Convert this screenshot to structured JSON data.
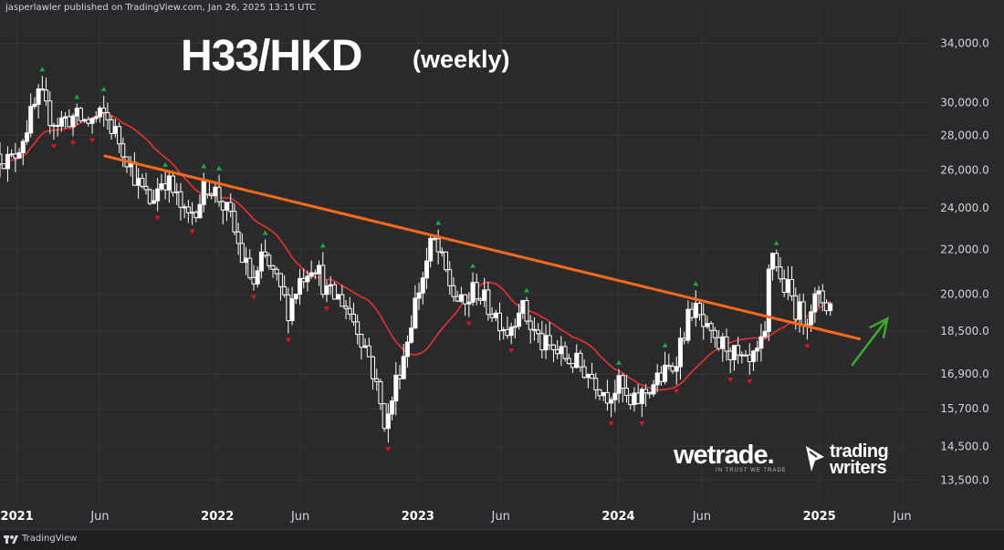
{
  "header": {
    "publisher_text": "jasperlawler published on TradingView.com, Jan 26, 2025 13:15 UTC"
  },
  "title": {
    "main": "H33/HKD",
    "sub": "(weekly)"
  },
  "footer": {
    "brand": "TradingView"
  },
  "watermarks": {
    "wetrade": "wetrade.",
    "wetrade_tagline": "IN TRUST WE TRADE",
    "trading_writers_1": "trading",
    "trading_writers_2": "writers"
  },
  "colors": {
    "background": "#2a2a2c",
    "grid": "#363638",
    "up_candle": "#ffffff",
    "down_candle": "#ffffff",
    "ma": "#e8312c",
    "trendline": "#ff6a1a",
    "up_marker": "#1fa83d",
    "down_marker": "#e0141e",
    "arrow": "#3fa82f",
    "text": "#d1d4dc"
  },
  "chart_data": {
    "type": "candlestick",
    "title": "H33/HKD",
    "subtitle": "(weekly)",
    "x_range": [
      "2020-12-01",
      "2025-07-20"
    ],
    "y_range": [
      13000,
      36000
    ],
    "y_ticks": [
      13500,
      14500,
      15700,
      16900,
      18500,
      20000,
      22000,
      24000,
      26000,
      28000,
      30000,
      34000
    ],
    "y_tick_labels": [
      "13,500.0",
      "14,500.0",
      "15,700.0",
      "16,900.0",
      "18,500.0",
      "20,000.0",
      "22,000.0",
      "24,000.0",
      "26,000.0",
      "28,000.0",
      "30,000.0",
      "34,000.0"
    ],
    "x_ticks": [
      {
        "date": "2021-01-01",
        "label": "2021",
        "bold": true
      },
      {
        "date": "2021-06-01",
        "label": "Jun",
        "bold": false
      },
      {
        "date": "2022-01-01",
        "label": "2022",
        "bold": true
      },
      {
        "date": "2022-06-01",
        "label": "Jun",
        "bold": false
      },
      {
        "date": "2023-01-01",
        "label": "2023",
        "bold": true
      },
      {
        "date": "2023-06-01",
        "label": "Jun",
        "bold": false
      },
      {
        "date": "2024-01-01",
        "label": "2024",
        "bold": true
      },
      {
        "date": "2024-06-01",
        "label": "Jun",
        "bold": false
      },
      {
        "date": "2025-01-01",
        "label": "2025",
        "bold": true
      },
      {
        "date": "2025-06-01",
        "label": "Jun",
        "bold": false
      }
    ],
    "close_anchors": [
      [
        "2020-12-01",
        26900
      ],
      [
        "2020-12-20",
        26400
      ],
      [
        "2021-01-10",
        27800
      ],
      [
        "2021-01-28",
        29300
      ],
      [
        "2021-02-12",
        30500
      ],
      [
        "2021-02-25",
        29300
      ],
      [
        "2021-03-15",
        28800
      ],
      [
        "2021-04-10",
        29100
      ],
      [
        "2021-05-10",
        28800
      ],
      [
        "2021-06-10",
        29200
      ],
      [
        "2021-07-01",
        28000
      ],
      [
        "2021-07-20",
        26800
      ],
      [
        "2021-08-10",
        25200
      ],
      [
        "2021-09-01",
        24300
      ],
      [
        "2021-09-25",
        25700
      ],
      [
        "2021-10-15",
        24700
      ],
      [
        "2021-11-05",
        23400
      ],
      [
        "2021-11-25",
        24200
      ],
      [
        "2021-12-15",
        25300
      ],
      [
        "2022-01-05",
        24500
      ],
      [
        "2022-01-25",
        23400
      ],
      [
        "2022-02-15",
        21600
      ],
      [
        "2022-03-10",
        20300
      ],
      [
        "2022-03-25",
        21700
      ],
      [
        "2022-04-15",
        20700
      ],
      [
        "2022-05-10",
        19400
      ],
      [
        "2022-06-01",
        20700
      ],
      [
        "2022-06-25",
        21500
      ],
      [
        "2022-07-20",
        20000
      ],
      [
        "2022-08-15",
        19800
      ],
      [
        "2022-09-10",
        18800
      ],
      [
        "2022-10-05",
        17500
      ],
      [
        "2022-10-25",
        15800
      ],
      [
        "2022-11-05",
        15100
      ],
      [
        "2022-11-20",
        16500
      ],
      [
        "2022-12-10",
        17900
      ],
      [
        "2022-12-25",
        19500
      ],
      [
        "2023-01-15",
        21200
      ],
      [
        "2023-01-28",
        22500
      ],
      [
        "2023-02-15",
        21300
      ],
      [
        "2023-03-05",
        20100
      ],
      [
        "2023-03-25",
        19400
      ],
      [
        "2023-04-15",
        20300
      ],
      [
        "2023-05-05",
        19600
      ],
      [
        "2023-05-25",
        19100
      ],
      [
        "2023-06-15",
        18500
      ],
      [
        "2023-07-05",
        19600
      ],
      [
        "2023-07-25",
        18700
      ],
      [
        "2023-08-15",
        18000
      ],
      [
        "2023-09-10",
        17700
      ],
      [
        "2023-10-05",
        17400
      ],
      [
        "2023-10-30",
        17100
      ],
      [
        "2023-11-20",
        16700
      ],
      [
        "2023-12-10",
        16200
      ],
      [
        "2024-01-05",
        16500
      ],
      [
        "2024-01-22",
        15700
      ],
      [
        "2024-02-10",
        16100
      ],
      [
        "2024-03-01",
        16500
      ],
      [
        "2024-03-20",
        16800
      ],
      [
        "2024-04-10",
        17200
      ],
      [
        "2024-04-28",
        18400
      ],
      [
        "2024-05-15",
        19500
      ],
      [
        "2024-06-05",
        18600
      ],
      [
        "2024-06-25",
        17900
      ],
      [
        "2024-07-15",
        18000
      ],
      [
        "2024-08-05",
        17400
      ],
      [
        "2024-08-25",
        17100
      ],
      [
        "2024-09-10",
        17600
      ],
      [
        "2024-09-25",
        18200
      ],
      [
        "2024-10-02",
        21300
      ],
      [
        "2024-10-10",
        22100
      ],
      [
        "2024-10-20",
        20600
      ],
      [
        "2024-11-05",
        20200
      ],
      [
        "2024-11-20",
        19400
      ],
      [
        "2024-12-05",
        19000
      ],
      [
        "2024-12-20",
        19700
      ],
      [
        "2025-01-05",
        19800
      ],
      [
        "2025-01-20",
        19500
      ],
      [
        "2025-01-26",
        20000
      ]
    ],
    "series": [
      {
        "name": "",
        "type": "candles",
        "note": "weekly OHLC bars, white bodies"
      },
      {
        "name": "",
        "type": "moving_average",
        "color": "#e8312c"
      }
    ],
    "annotations": {
      "trendline": {
        "color": "#ff6a1a",
        "points": [
          [
            "2021-06-10",
            26800
          ],
          [
            "2025-03-15",
            18200
          ]
        ]
      },
      "arrow": {
        "color": "#3fa82f",
        "direction": "up",
        "from": [
          "2025-03-01",
          17200
        ],
        "to": [
          "2025-05-05",
          19000
        ]
      }
    }
  }
}
